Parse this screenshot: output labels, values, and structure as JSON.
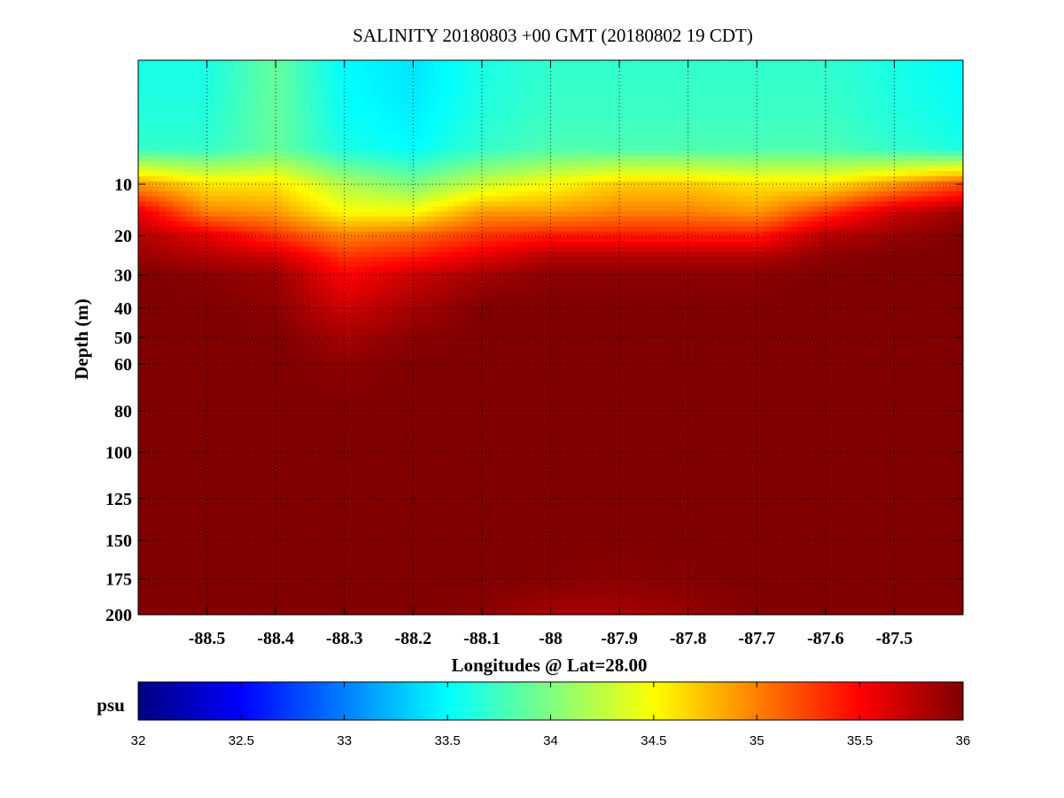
{
  "chart_data": {
    "type": "heatmap",
    "title": "SALINITY 20180803 +00 GMT (20180802 19 CDT)",
    "xlabel": "Longitudes @ Lat=28.00",
    "ylabel": "Depth (m)",
    "xlim": [
      -88.6,
      -87.4
    ],
    "ylim": [
      0,
      200
    ],
    "y_scale": "sqrt",
    "y_reversed": true,
    "grid": true,
    "x_ticks": [
      -88.5,
      -88.4,
      -88.3,
      -88.2,
      -88.1,
      -88.0,
      -87.9,
      -87.8,
      -87.7,
      -87.6,
      -87.5
    ],
    "x_tick_labels": [
      "-88.5",
      "-88.4",
      "-88.3",
      "-88.2",
      "-88.1",
      "-88",
      "-87.9",
      "-87.8",
      "-87.7",
      "-87.6",
      "-87.5"
    ],
    "y_ticks": [
      10,
      20,
      30,
      40,
      50,
      60,
      80,
      100,
      125,
      150,
      175,
      200
    ],
    "y_tick_labels": [
      "10",
      "20",
      "30",
      "40",
      "50",
      "60",
      "80",
      "100",
      "125",
      "150",
      "175",
      "200"
    ],
    "longitudes": [
      -88.6,
      -88.5,
      -88.4,
      -88.3,
      -88.2,
      -88.1,
      -88.0,
      -87.9,
      -87.8,
      -87.7,
      -87.6,
      -87.5,
      -87.4
    ],
    "depths": [
      0,
      5,
      10,
      15,
      20,
      25,
      30,
      40,
      50,
      60,
      80,
      100,
      125,
      150,
      175,
      200
    ],
    "salinity": [
      [
        33.6,
        33.6,
        33.9,
        33.5,
        33.4,
        33.6,
        33.7,
        33.7,
        33.7,
        33.7,
        33.7,
        33.6,
        33.5
      ],
      [
        33.7,
        33.7,
        33.9,
        33.6,
        33.5,
        33.7,
        33.8,
        33.8,
        33.8,
        33.8,
        33.8,
        33.7,
        33.6
      ],
      [
        34.9,
        34.6,
        34.6,
        34.2,
        34.0,
        34.3,
        34.5,
        34.7,
        34.7,
        34.6,
        34.6,
        34.9,
        35.2
      ],
      [
        35.6,
        35.0,
        34.9,
        34.5,
        34.5,
        34.9,
        34.9,
        35.0,
        35.0,
        34.9,
        35.3,
        35.7,
        35.9
      ],
      [
        35.8,
        35.6,
        35.3,
        35.0,
        35.1,
        35.3,
        35.4,
        35.4,
        35.4,
        35.4,
        35.8,
        35.9,
        36.0
      ],
      [
        35.9,
        35.8,
        35.7,
        35.3,
        35.4,
        35.6,
        35.8,
        35.8,
        35.8,
        35.8,
        35.95,
        36.0,
        36.0
      ],
      [
        36.0,
        35.95,
        35.9,
        35.5,
        35.7,
        35.85,
        35.95,
        35.95,
        35.95,
        35.95,
        36.0,
        36.0,
        36.0
      ],
      [
        36.0,
        36.0,
        35.95,
        35.7,
        35.85,
        36.0,
        36.0,
        36.0,
        36.0,
        36.0,
        36.0,
        36.0,
        36.0
      ],
      [
        36.0,
        36.0,
        36.0,
        35.85,
        35.95,
        36.0,
        36.0,
        36.0,
        36.0,
        36.0,
        36.0,
        36.0,
        36.0
      ],
      [
        36.0,
        36.0,
        36.0,
        35.95,
        36.0,
        36.0,
        36.0,
        36.0,
        36.0,
        36.0,
        36.0,
        36.0,
        36.0
      ],
      [
        36.0,
        36.0,
        36.0,
        36.0,
        36.0,
        36.0,
        36.0,
        36.0,
        36.0,
        36.0,
        36.0,
        36.0,
        36.0
      ],
      [
        36.0,
        36.0,
        36.0,
        36.0,
        36.0,
        36.0,
        36.0,
        36.0,
        36.0,
        36.0,
        36.0,
        36.0,
        36.0
      ],
      [
        36.0,
        36.0,
        36.0,
        36.0,
        36.0,
        36.0,
        36.0,
        36.0,
        36.0,
        36.0,
        36.0,
        36.0,
        36.0
      ],
      [
        36.0,
        36.0,
        36.0,
        36.0,
        36.0,
        36.0,
        36.0,
        36.0,
        36.0,
        36.0,
        36.0,
        36.0,
        36.0
      ],
      [
        36.0,
        36.0,
        36.0,
        36.0,
        36.0,
        36.0,
        35.98,
        35.95,
        35.98,
        36.0,
        36.0,
        36.0,
        36.0
      ],
      [
        36.0,
        36.0,
        36.0,
        36.0,
        36.0,
        35.95,
        35.85,
        35.85,
        35.9,
        36.0,
        36.0,
        36.0,
        36.0
      ]
    ],
    "colorbar": {
      "label": "psu",
      "min": 32,
      "max": 36,
      "ticks": [
        32,
        32.5,
        33,
        33.5,
        34,
        34.5,
        35,
        35.5,
        36
      ],
      "tick_labels": [
        "32",
        "32.5",
        "33",
        "33.5",
        "34",
        "34.5",
        "35",
        "35.5",
        "36"
      ],
      "colormap": "jet"
    }
  }
}
